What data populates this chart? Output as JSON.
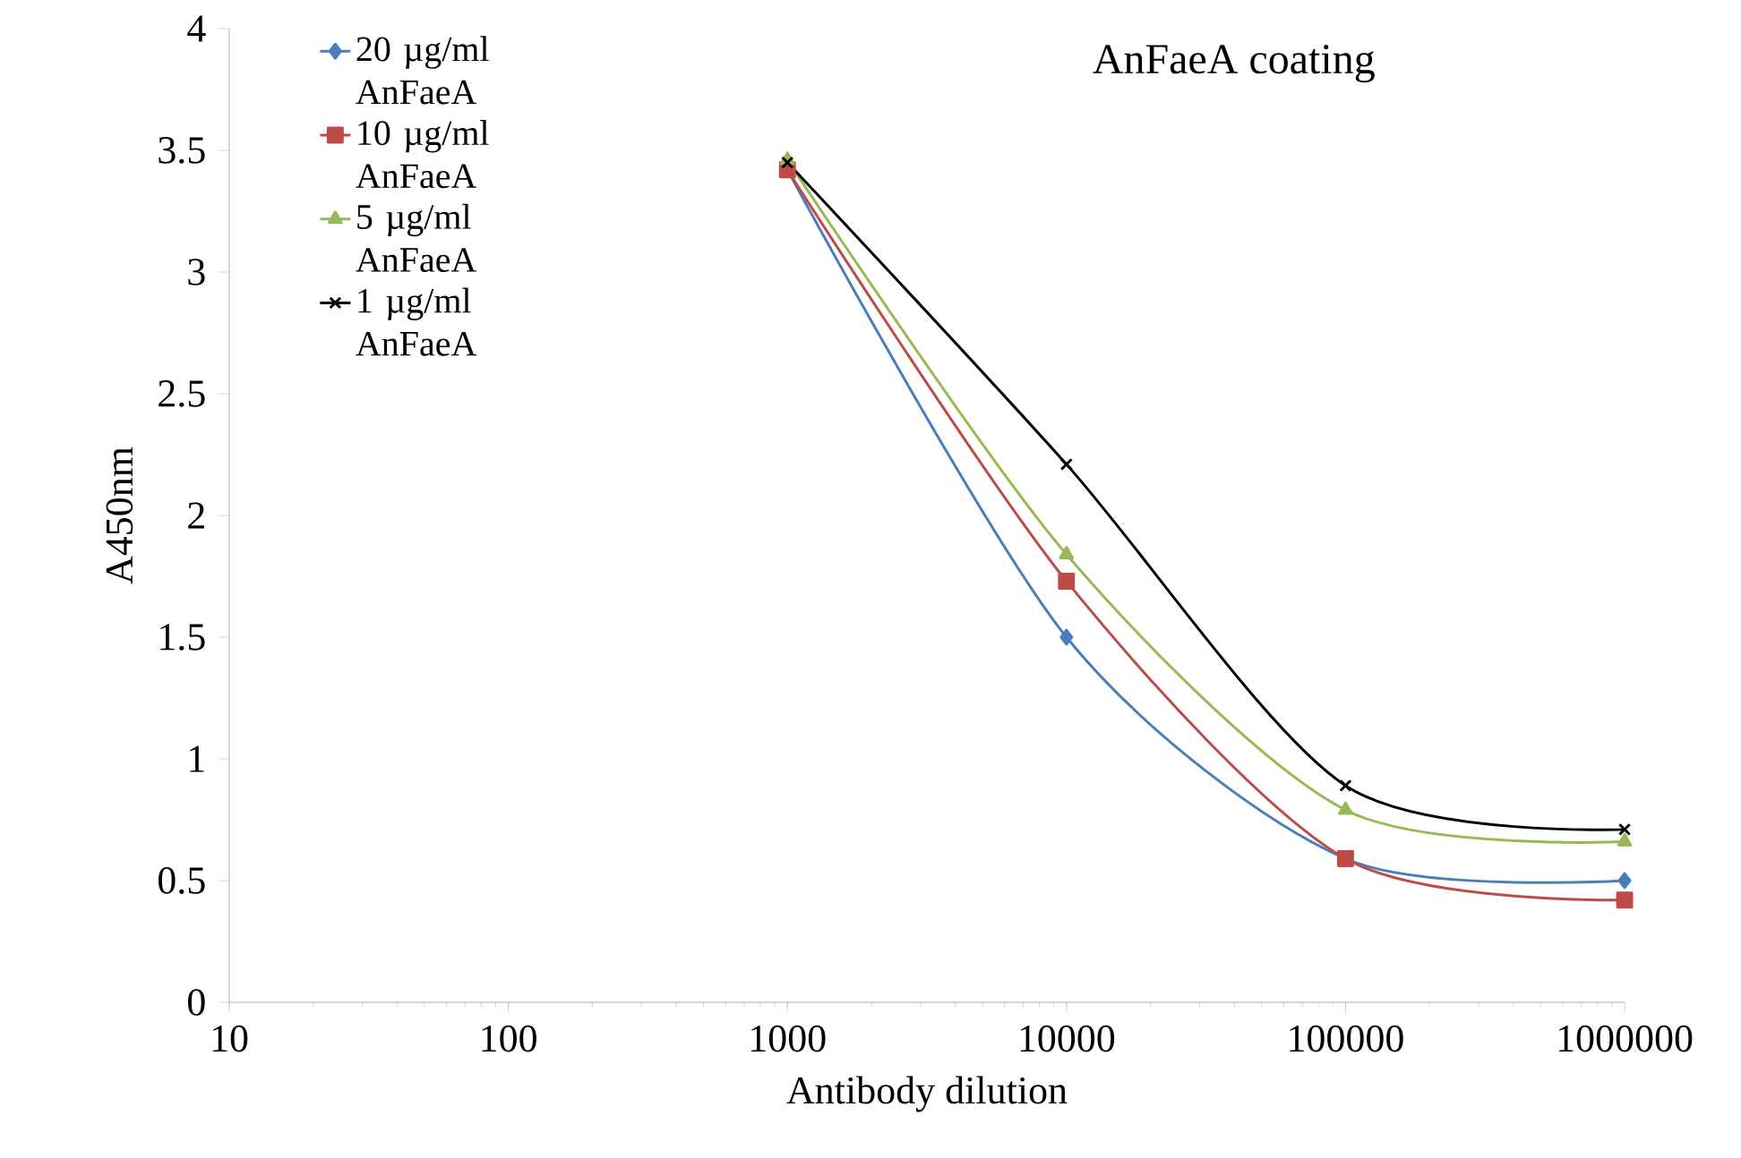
{
  "chart_data": {
    "type": "line",
    "title": "AnFaeA coating",
    "xlabel": "Antibody dilution",
    "ylabel": "A450nm",
    "x": [
      1000,
      10000,
      100000,
      1000000
    ],
    "series": [
      {
        "name": "20 µg/ml AnFaeA",
        "color": "#4a7ebb",
        "marker": "diamond",
        "values": [
          3.42,
          1.5,
          0.59,
          0.5
        ]
      },
      {
        "name": "10 µg/ml AnFaeA",
        "color": "#be4b48",
        "marker": "square",
        "values": [
          3.42,
          1.73,
          0.59,
          0.42
        ]
      },
      {
        "name": "5 µg/ml AnFaeA",
        "color": "#98b954",
        "marker": "triangle",
        "values": [
          3.46,
          1.84,
          0.79,
          0.66
        ]
      },
      {
        "name": "1 µg/ml AnFaeA",
        "color": "#000000",
        "marker": "cross",
        "values": [
          3.45,
          2.21,
          0.89,
          0.71
        ]
      }
    ],
    "log": "x",
    "xlim": [
      10,
      1000000
    ],
    "xticks": [
      10,
      100,
      1000,
      10000,
      100000,
      1000000
    ],
    "ylim": [
      0,
      4
    ],
    "yticks": [
      0,
      0.5,
      1,
      1.5,
      2,
      2.5,
      3,
      3.5,
      4
    ],
    "grid": false,
    "legend": "top left",
    "line_style": "solid"
  }
}
